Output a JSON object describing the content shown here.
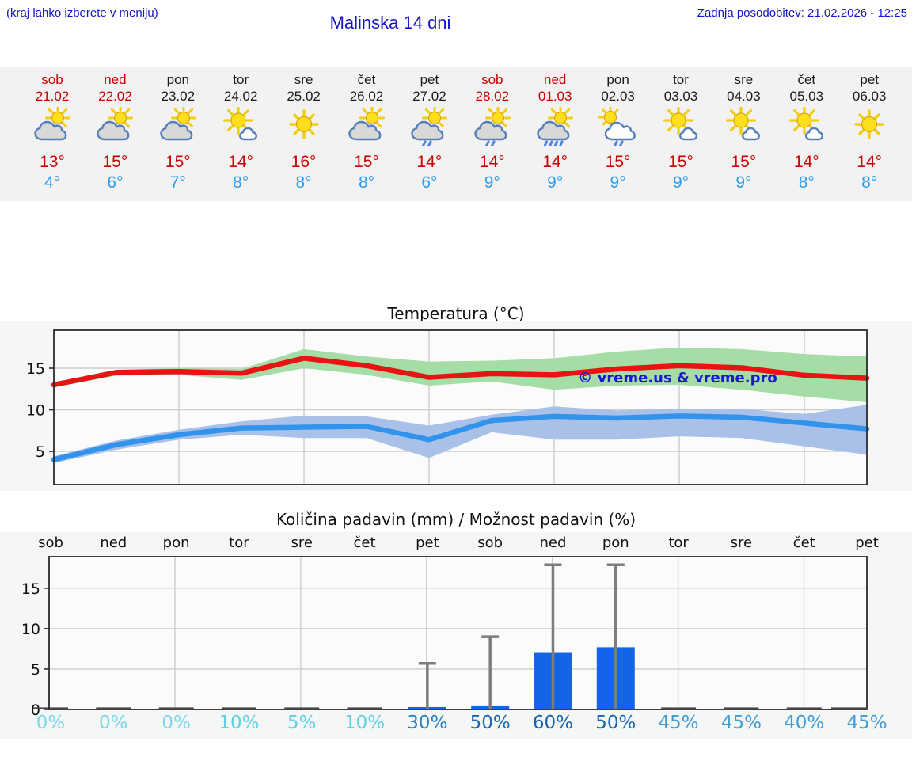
{
  "header": {
    "note": "(kraj lahko izberete v meniju)",
    "title": "Malinska 14 dni",
    "updated": "Zadnja posodobitev: 21.02.2026 - 12:25"
  },
  "days": [
    {
      "name": "sob",
      "date": "21.02",
      "weekend": true,
      "icon": "sun-cloud",
      "tmax": "13°",
      "tmin": "4°",
      "pop": "0%"
    },
    {
      "name": "ned",
      "date": "22.02",
      "weekend": true,
      "icon": "sun-cloud",
      "tmax": "15°",
      "tmin": "6°",
      "pop": "0%"
    },
    {
      "name": "pon",
      "date": "23.02",
      "weekend": false,
      "icon": "sun-cloud",
      "tmax": "15°",
      "tmin": "7°",
      "pop": "0%"
    },
    {
      "name": "tor",
      "date": "24.02",
      "weekend": false,
      "icon": "sun-small-cloud",
      "tmax": "14°",
      "tmin": "8°",
      "pop": "10%"
    },
    {
      "name": "sre",
      "date": "25.02",
      "weekend": false,
      "icon": "sun",
      "tmax": "16°",
      "tmin": "8°",
      "pop": "5%"
    },
    {
      "name": "čet",
      "date": "26.02",
      "weekend": false,
      "icon": "sun-cloud",
      "tmax": "15°",
      "tmin": "8°",
      "pop": "10%"
    },
    {
      "name": "pet",
      "date": "27.02",
      "weekend": false,
      "icon": "sc-rain2",
      "tmax": "14°",
      "tmin": "6°",
      "pop": "30%"
    },
    {
      "name": "sob",
      "date": "28.02",
      "weekend": true,
      "icon": "sc-rain2",
      "tmax": "14°",
      "tmin": "9°",
      "pop": "50%"
    },
    {
      "name": "ned",
      "date": "01.03",
      "weekend": true,
      "icon": "sc-rain3",
      "tmax": "14°",
      "tmin": "9°",
      "pop": "60%"
    },
    {
      "name": "pon",
      "date": "02.03",
      "weekend": false,
      "icon": "wc-rain2",
      "tmax": "15°",
      "tmin": "9°",
      "pop": "50%"
    },
    {
      "name": "tor",
      "date": "03.03",
      "weekend": false,
      "icon": "sun-small-cloud",
      "tmax": "15°",
      "tmin": "9°",
      "pop": "45%"
    },
    {
      "name": "sre",
      "date": "04.03",
      "weekend": false,
      "icon": "sun-small-cloud",
      "tmax": "15°",
      "tmin": "9°",
      "pop": "45%"
    },
    {
      "name": "čet",
      "date": "05.03",
      "weekend": false,
      "icon": "sun-small-cloud",
      "tmax": "14°",
      "tmin": "8°",
      "pop": "40%"
    },
    {
      "name": "pet",
      "date": "06.03",
      "weekend": false,
      "icon": "sun",
      "tmax": "14°",
      "tmin": "8°",
      "pop": "45%"
    }
  ],
  "pop_colors": {
    "0%": "#79d9e9",
    "5%": "#60cfe4",
    "10%": "#60cfe4",
    "30%": "#2b80c2",
    "40%": "#3f9cd6",
    "45%": "#3f9cd6",
    "50%": "#1768b0",
    "60%": "#1563ac"
  },
  "chart_data": [
    {
      "type": "line",
      "title": "Temperatura (°C)",
      "categories": [
        "21.02",
        "22.02",
        "23.02",
        "24.02",
        "25.02",
        "26.02",
        "27.02",
        "28.02",
        "01.03",
        "02.03",
        "03.03",
        "04.03",
        "05.03",
        "06.03"
      ],
      "yticks": [
        5,
        10,
        15
      ],
      "ylim": [
        1,
        19.6
      ],
      "grid": true,
      "watermark": "© vreme.us & vreme.pro",
      "watermark_color": "#1a1acc",
      "series": [
        {
          "name": "max-temperature",
          "color": "#e81313",
          "values": [
            13.0,
            14.5,
            14.6,
            14.4,
            16.2,
            15.3,
            13.9,
            14.35,
            14.2,
            14.9,
            15.3,
            15.05,
            14.15,
            13.8
          ]
        },
        {
          "name": "min-temperature",
          "color": "#3193ec",
          "values": [
            4.0,
            5.8,
            7.0,
            7.8,
            7.9,
            8.0,
            6.4,
            8.7,
            9.2,
            9.0,
            9.25,
            9.1,
            8.4,
            7.7
          ]
        }
      ],
      "bands": [
        {
          "name": "max-range",
          "color": "#a6dca6",
          "hi": [
            13.3,
            14.8,
            15.0,
            14.9,
            17.3,
            16.4,
            15.8,
            15.9,
            16.2,
            17.0,
            17.5,
            17.3,
            16.7,
            16.4
          ],
          "lo": [
            12.7,
            14.1,
            14.2,
            13.6,
            15.0,
            14.2,
            12.9,
            13.4,
            12.4,
            12.9,
            13.0,
            12.4,
            11.6,
            10.9
          ]
        },
        {
          "name": "min-range",
          "color": "#a9c1e8",
          "hi": [
            4.4,
            6.3,
            7.6,
            8.6,
            9.3,
            9.2,
            8.1,
            9.4,
            10.4,
            9.9,
            10.15,
            10.1,
            9.5,
            10.6
          ],
          "lo": [
            3.6,
            5.2,
            6.4,
            7.0,
            6.6,
            6.6,
            4.2,
            7.3,
            6.4,
            6.4,
            6.8,
            6.6,
            5.6,
            4.6
          ]
        }
      ]
    },
    {
      "type": "bar",
      "title": "Količina padavin (mm) / Možnost padavin (%)",
      "categories": [
        "sob",
        "ned",
        "pon",
        "tor",
        "sre",
        "čet",
        "pet",
        "sob",
        "ned",
        "pon",
        "tor",
        "sre",
        "čet",
        "pet"
      ],
      "values": [
        0,
        0,
        0,
        0,
        0,
        0,
        0.3,
        0.4,
        7.0,
        7.7,
        0,
        0,
        0,
        0
      ],
      "whisker_max": [
        0,
        0,
        0,
        0,
        0,
        0,
        5.7,
        9.0,
        17.9,
        17.9,
        0,
        0,
        0,
        0
      ],
      "pop_percent": [
        "0%",
        "0%",
        "0%",
        "10%",
        "5%",
        "10%",
        "30%",
        "50%",
        "60%",
        "50%",
        "45%",
        "45%",
        "40%",
        "45%"
      ],
      "yticks": [
        0,
        5,
        10,
        15
      ],
      "ylim": [
        0,
        18.9
      ],
      "grid": true,
      "bar_color": "#1664e6",
      "zero_bar_color": "#474747",
      "whisker_color": "#7d7d7d"
    }
  ],
  "colors": {
    "header_text": "#1414cc",
    "weekend": "#c80000",
    "tmax": "#cc0202",
    "tmin": "#2e9ded",
    "header_band": "#f2f2f2",
    "figure_bg": "#f5f6f6"
  }
}
